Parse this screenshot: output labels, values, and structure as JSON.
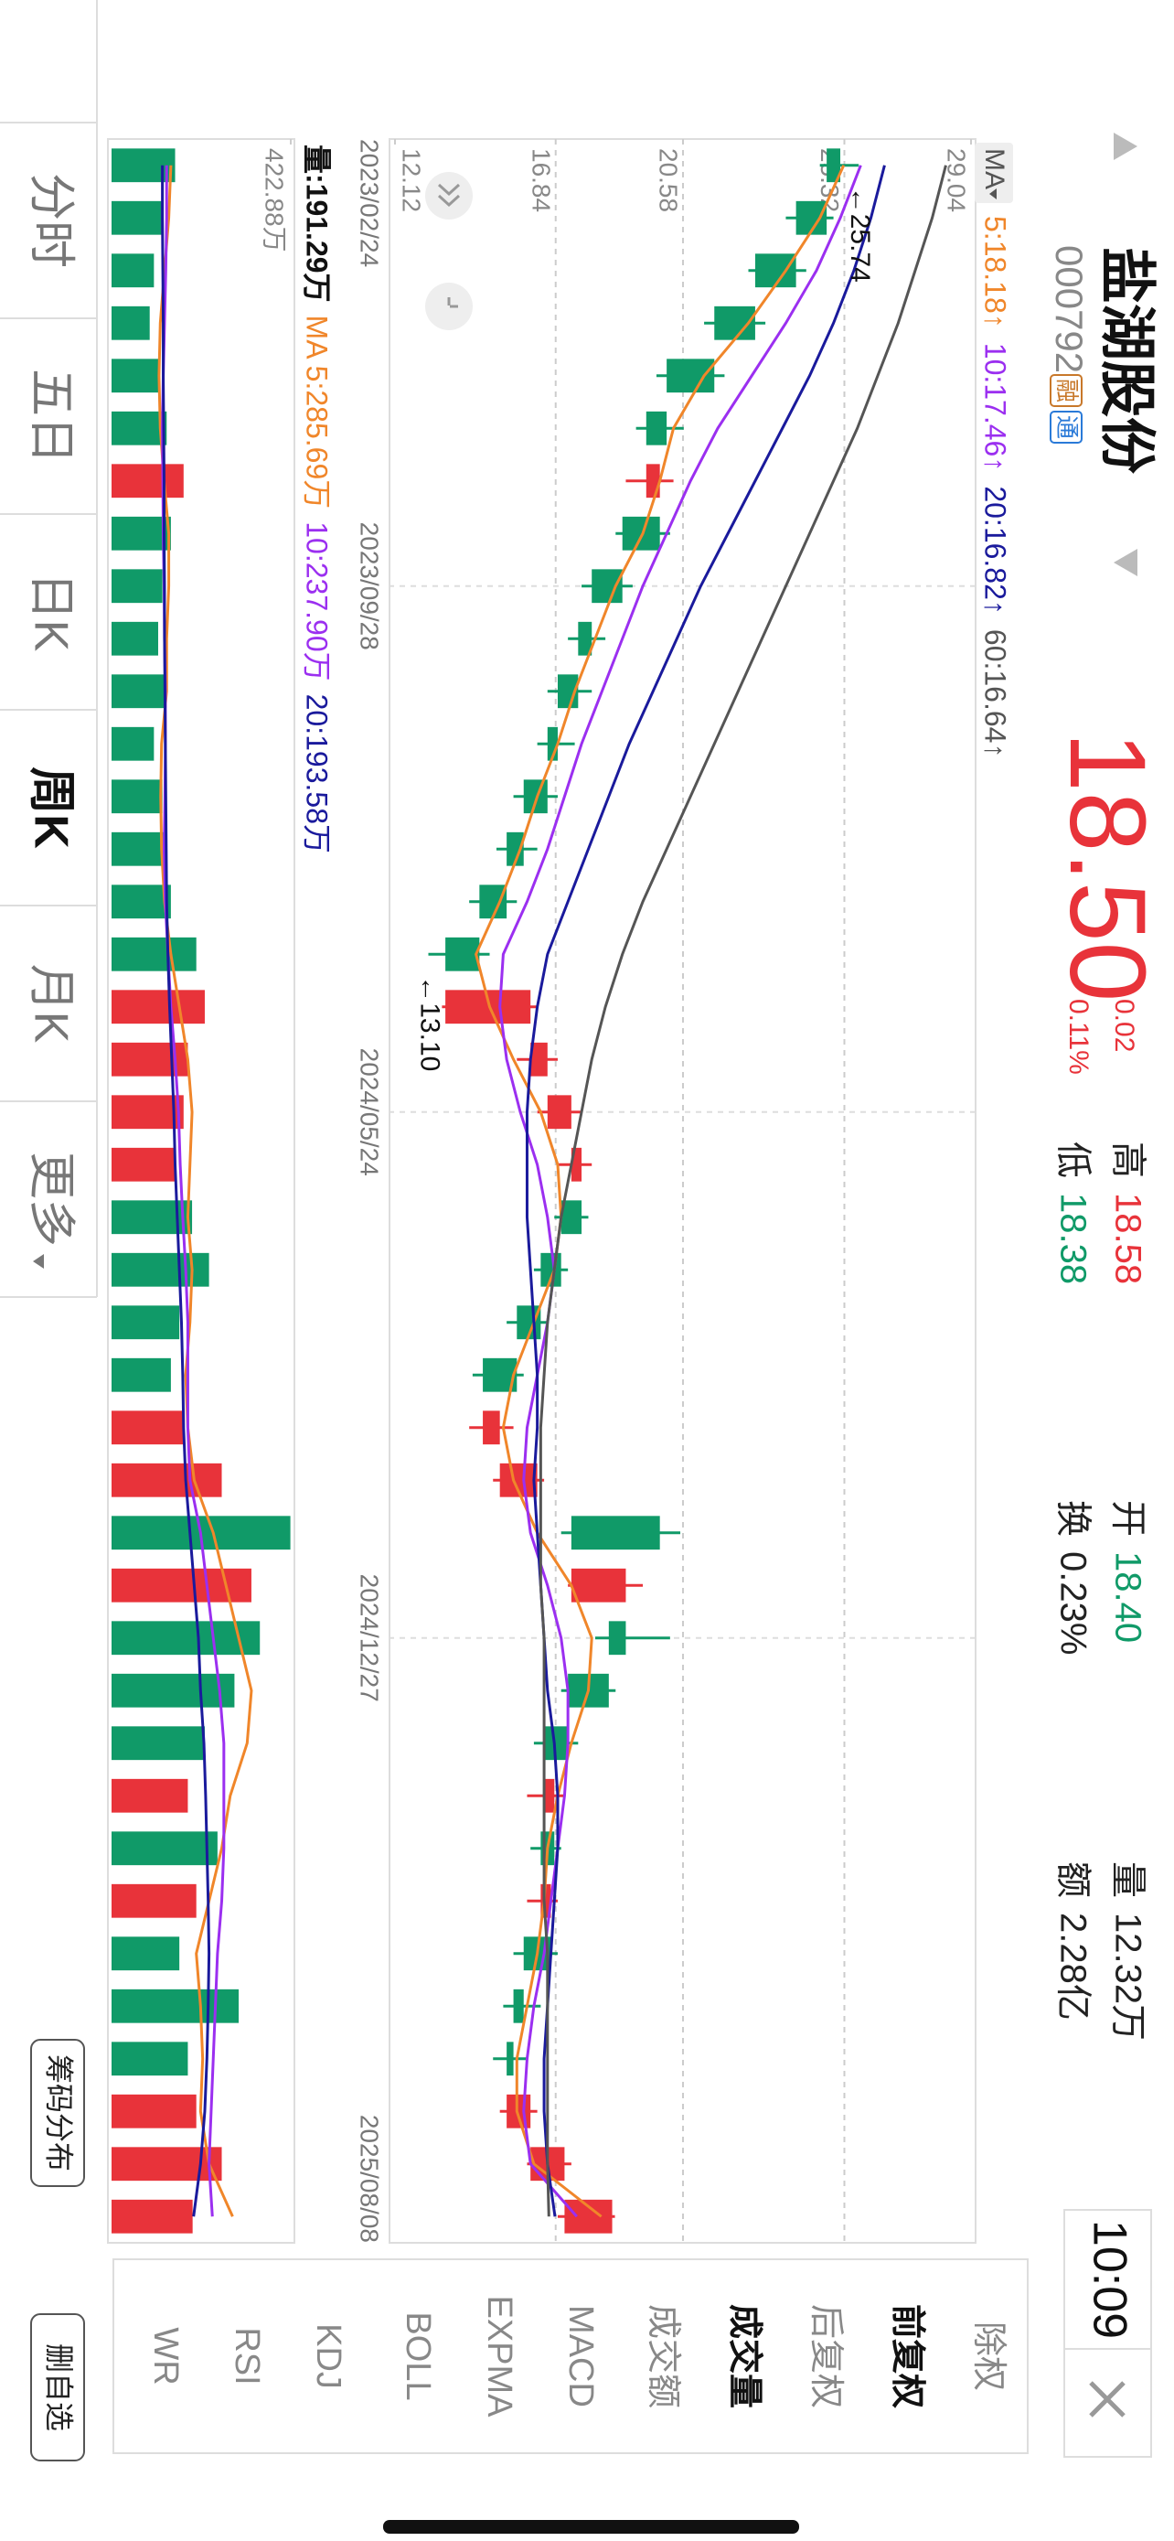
{
  "header": {
    "title": "盐湖股份",
    "code": "000792",
    "badges": [
      "融",
      "通"
    ],
    "price": "18.50",
    "change": "0.02",
    "change_pct": "0.11%",
    "stats": [
      {
        "label": "高",
        "value": "18.58"
      },
      {
        "label": "低",
        "value": "18.38"
      },
      {
        "label": "开",
        "value": "18.40"
      },
      {
        "label": "换",
        "value": "0.23%"
      },
      {
        "label": "量",
        "value": "12.32万"
      },
      {
        "label": "额",
        "value": "2.28亿"
      }
    ],
    "time": "10:09"
  },
  "tabs": [
    "分时",
    "五日",
    "日K",
    "周K",
    "月K",
    "更多"
  ],
  "menu": [
    "除权",
    "前复权",
    "后复权",
    "成交量",
    "成交额",
    "MACD",
    "EXPMA",
    "BOLL",
    "KDJ",
    "RSI",
    "WR"
  ],
  "buttons": [
    "筹码分布",
    "删自选"
  ],
  "chart_data": [
    {
      "type": "candlestick",
      "legend_button": "MA",
      "categories": [
        "2023/02/24",
        null,
        null,
        null,
        null,
        null,
        null,
        null,
        "2023/09/28",
        null,
        null,
        null,
        null,
        null,
        null,
        null,
        null,
        null,
        "2024/05/24",
        null,
        null,
        null,
        null,
        null,
        null,
        null,
        null,
        null,
        "2024/12/27",
        null,
        null,
        null,
        null,
        null,
        null,
        null,
        null,
        null,
        null,
        "2025/08/08"
      ],
      "open": [
        25.2,
        24.8,
        23.9,
        22.7,
        21.5,
        20.1,
        19.5,
        19.9,
        18.8,
        17.9,
        17.5,
        16.9,
        16.6,
        15.9,
        15.4,
        14.6,
        13.6,
        16.1,
        16.6,
        17.3,
        17.6,
        17.0,
        16.4,
        15.7,
        14.7,
        15.2,
        19.9,
        17.3,
        18.9,
        18.4,
        17.2,
        16.5,
        16.8,
        16.4,
        16.7,
        15.9,
        15.6,
        15.4,
        16.1,
        17.1
      ],
      "high": [
        25.74,
        25.0,
        24.2,
        23.0,
        21.8,
        20.6,
        20.3,
        20.2,
        19.1,
        18.3,
        17.9,
        17.4,
        16.9,
        16.3,
        15.7,
        14.9,
        16.3,
        16.9,
        17.6,
        17.9,
        17.8,
        17.2,
        16.6,
        15.9,
        15.6,
        16.5,
        20.5,
        19.4,
        20.2,
        18.6,
        17.5,
        17.1,
        17.0,
        16.9,
        16.9,
        16.4,
        16.0,
        16.3,
        17.3,
        18.58
      ],
      "low": [
        24.6,
        23.6,
        22.5,
        21.2,
        19.8,
        19.2,
        18.9,
        18.6,
        17.6,
        17.2,
        16.6,
        16.3,
        15.6,
        15.1,
        14.3,
        13.1,
        13.5,
        15.7,
        16.3,
        16.9,
        16.8,
        16.2,
        15.4,
        14.4,
        14.3,
        15.0,
        17.0,
        17.2,
        18.0,
        17.0,
        16.2,
        16.0,
        16.1,
        16.0,
        15.6,
        15.3,
        15.0,
        15.2,
        16.0,
        16.9
      ],
      "close": [
        24.8,
        23.9,
        22.7,
        21.5,
        20.1,
        19.5,
        19.9,
        18.8,
        17.9,
        17.5,
        16.9,
        16.6,
        15.9,
        15.4,
        14.6,
        13.6,
        16.1,
        16.6,
        17.3,
        17.6,
        17.0,
        16.4,
        15.7,
        14.7,
        15.2,
        16.3,
        17.3,
        18.9,
        18.4,
        17.2,
        16.5,
        16.8,
        16.4,
        16.7,
        15.9,
        15.6,
        15.4,
        16.1,
        17.1,
        18.5
      ],
      "up_color": "#e8333a",
      "down_color": "#109a68",
      "ylim": [
        12.12,
        29.04
      ],
      "yticks": [
        29.04,
        25.32,
        20.58,
        16.84,
        12.12
      ],
      "grid": true,
      "series": [
        {
          "name": "5:18.18↑",
          "color": "#f0862a",
          "values": [
            25.3,
            24.6,
            23.6,
            22.5,
            21.2,
            20.3,
            19.9,
            19.4,
            18.6,
            18.0,
            17.4,
            16.9,
            16.3,
            15.8,
            15.2,
            14.5,
            14.9,
            15.6,
            16.4,
            16.9,
            17.0,
            16.8,
            16.2,
            15.6,
            15.3,
            15.6,
            16.3,
            17.3,
            17.9,
            17.8,
            17.3,
            16.9,
            16.6,
            16.5,
            16.3,
            16.0,
            15.7,
            15.7,
            16.2,
            18.18
          ]
        },
        {
          "name": "10:17.46↑",
          "color": "#9b2ff0",
          "values": [
            25.8,
            25.2,
            24.5,
            23.6,
            22.6,
            21.6,
            20.8,
            20.1,
            19.4,
            18.8,
            18.2,
            17.6,
            17.1,
            16.6,
            16.0,
            15.3,
            15.2,
            15.4,
            15.8,
            16.3,
            16.6,
            16.8,
            16.6,
            16.3,
            16.0,
            15.9,
            16.1,
            16.6,
            17.0,
            17.2,
            17.2,
            17.1,
            16.9,
            16.7,
            16.5,
            16.2,
            16.0,
            15.9,
            16.1,
            17.46
          ]
        },
        {
          "name": "20:16.82↑",
          "color": "#1a1a9c",
          "values": [
            26.5,
            26.1,
            25.6,
            25.0,
            24.3,
            23.5,
            22.7,
            21.9,
            21.1,
            20.4,
            19.7,
            19.0,
            18.4,
            17.8,
            17.2,
            16.6,
            16.3,
            16.1,
            16.0,
            16.0,
            16.0,
            16.1,
            16.2,
            16.3,
            16.3,
            16.2,
            16.3,
            16.4,
            16.5,
            16.6,
            16.8,
            16.9,
            16.9,
            16.8,
            16.7,
            16.6,
            16.5,
            16.5,
            16.6,
            16.82
          ]
        },
        {
          "name": "60:16.64↑",
          "color": "#555555",
          "values": [
            28.3,
            27.9,
            27.4,
            26.9,
            26.3,
            25.7,
            25.0,
            24.3,
            23.6,
            22.9,
            22.2,
            21.5,
            20.8,
            20.1,
            19.4,
            18.8,
            18.3,
            17.9,
            17.6,
            17.3,
            17.0,
            16.8,
            16.6,
            16.5,
            16.4,
            16.4,
            16.4,
            16.4,
            16.5,
            16.5,
            16.5,
            16.5,
            16.5,
            16.5,
            16.6,
            16.6,
            16.6,
            16.6,
            16.6,
            16.64
          ]
        }
      ],
      "annotations": [
        {
          "label": "←25.74",
          "value": 25.74
        },
        {
          "label": "←13.10",
          "value": 13.1
        }
      ]
    },
    {
      "type": "bar",
      "title": "量:191.29万",
      "values": [
        150,
        120,
        100,
        90,
        110,
        130,
        170,
        140,
        120,
        110,
        130,
        100,
        120,
        130,
        140,
        200,
        220,
        180,
        170,
        150,
        190,
        230,
        160,
        140,
        170,
        260,
        422,
        330,
        350,
        290,
        220,
        180,
        250,
        200,
        160,
        300,
        180,
        200,
        260,
        191.29
      ],
      "ylim": [
        0,
        422.88
      ],
      "yticks": [
        {
          "value": 422.88,
          "label": "422.88万"
        }
      ],
      "series": [
        {
          "name": "MA 5:285.69万",
          "color": "#f0862a",
          "values": [
            140,
            135,
            125,
            115,
            112,
            115,
            124,
            135,
            135,
            130,
            130,
            118,
            116,
            118,
            125,
            140,
            160,
            180,
            190,
            185,
            180,
            190,
            185,
            175,
            180,
            195,
            240,
            270,
            300,
            330,
            320,
            280,
            260,
            230,
            200,
            210,
            215,
            210,
            230,
            285.69
          ]
        },
        {
          "name": "10:237.90万",
          "color": "#9b2ff0",
          "values": [
            130,
            130,
            128,
            125,
            122,
            120,
            121,
            122,
            124,
            125,
            127,
            127,
            126,
            124,
            127,
            133,
            140,
            150,
            158,
            162,
            168,
            175,
            180,
            180,
            180,
            185,
            210,
            225,
            240,
            255,
            265,
            265,
            265,
            260,
            250,
            245,
            240,
            235,
            230,
            237.9
          ]
        },
        {
          "name": "20:193.58万",
          "color": "#1a1a9c",
          "values": [
            120,
            120,
            121,
            122,
            122,
            123,
            124,
            124,
            125,
            125,
            126,
            127,
            128,
            129,
            130,
            133,
            137,
            142,
            147,
            150,
            155,
            160,
            165,
            168,
            170,
            175,
            185,
            195,
            205,
            210,
            218,
            222,
            225,
            228,
            230,
            228,
            225,
            220,
            210,
            193.58
          ]
        }
      ]
    }
  ]
}
